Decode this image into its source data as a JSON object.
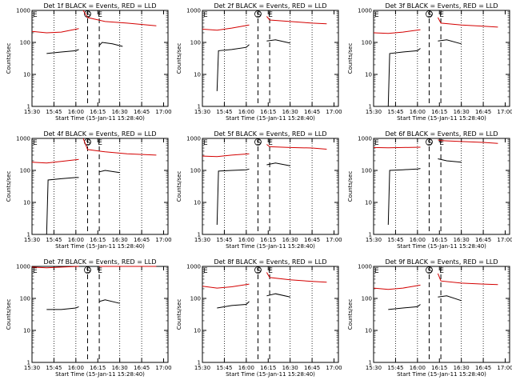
{
  "chart_data": {
    "type": "line",
    "ylabel": "Counts/sec",
    "xlabel": "Start Time (15-Jan-11 15:28:40)",
    "xticks": [
      "15:30",
      "15:45",
      "16:00",
      "16:15",
      "16:30",
      "16:45",
      "17:00"
    ],
    "yticks": [
      "1",
      "10",
      "100",
      "1000"
    ],
    "ylim": [
      1,
      1000
    ],
    "yscale": "log",
    "xlim_minutes_after_1530": [
      0,
      93
    ],
    "marker_labels": [
      "E",
      "S",
      "E"
    ],
    "colors": {
      "events": "#000000",
      "lld": "#d40000",
      "axis": "#000000"
    },
    "panels": [
      {
        "title": "Det 1f BLACK = Events, RED = LLD",
        "series": [
          {
            "color": "#d40000",
            "segments": [
              {
                "x": [
                  0,
                  10,
                  20,
                  32
                ],
                "y": [
                  220,
                  200,
                  210,
                  270
                ]
              },
              {
                "x": [
                  35,
                  38,
                  50,
                  65,
                  85
                ],
                "y": [
                  1000,
                  600,
                  450,
                  400,
                  330
                ]
              }
            ]
          },
          {
            "color": "#000000",
            "segments": [
              {
                "x": [
                  10,
                  20,
                  30,
                  32
                ],
                "y": [
                  45,
                  50,
                  55,
                  60
                ]
              },
              {
                "x": [
                  46,
                  48,
                  55,
                  62
                ],
                "y": [
                  80,
                  100,
                  90,
                  75
                ]
              }
            ]
          }
        ]
      },
      {
        "title": "Det 2f BLACK = Events, RED = LLD",
        "series": [
          {
            "color": "#d40000",
            "segments": [
              {
                "x": [
                  0,
                  10,
                  20,
                  32
                ],
                "y": [
                  260,
                  240,
                  280,
                  350
                ]
              },
              {
                "x": [
                  44,
                  46,
                  60,
                  75,
                  85
                ],
                "y": [
                  650,
                  500,
                  450,
                  400,
                  380
                ]
              }
            ]
          },
          {
            "color": "#000000",
            "segments": [
              {
                "x": [
                  10,
                  11,
                  20,
                  30,
                  32
                ],
                "y": [
                  3,
                  55,
                  60,
                  70,
                  85
                ]
              },
              {
                "x": [
                  44,
                  50,
                  60
                ],
                "y": [
                  110,
                  120,
                  95
                ]
              }
            ]
          }
        ]
      },
      {
        "title": "Det 3f BLACK = Events, RED = LLD",
        "series": [
          {
            "color": "#d40000",
            "segments": [
              {
                "x": [
                  0,
                  10,
                  20,
                  32
                ],
                "y": [
                  200,
                  190,
                  210,
                  250
                ]
              },
              {
                "x": [
                  44,
                  46,
                  60,
                  75,
                  85
                ],
                "y": [
                  600,
                  400,
                  350,
                  320,
                  300
                ]
              }
            ]
          },
          {
            "color": "#000000",
            "segments": [
              {
                "x": [
                  10,
                  11,
                  20,
                  30,
                  32
                ],
                "y": [
                  1,
                  45,
                  50,
                  55,
                  65
                ]
              },
              {
                "x": [
                  44,
                  50,
                  60
                ],
                "y": [
                  110,
                  120,
                  90
                ]
              }
            ]
          }
        ]
      },
      {
        "title": "Det 4f BLACK = Events, RED = LLD",
        "series": [
          {
            "color": "#d40000",
            "segments": [
              {
                "x": [
                  0,
                  10,
                  20,
                  32
                ],
                "y": [
                  180,
                  170,
                  190,
                  220
                ]
              },
              {
                "x": [
                  35,
                  38,
                  50,
                  65,
                  85
                ],
                "y": [
                  1000,
                  450,
                  380,
                  330,
                  300
                ]
              }
            ]
          },
          {
            "color": "#000000",
            "segments": [
              {
                "x": [
                  10,
                  11,
                  20,
                  30,
                  32
                ],
                "y": [
                  1,
                  50,
                  55,
                  60,
                  60
                ]
              },
              {
                "x": [
                  46,
                  50,
                  60
                ],
                "y": [
                  90,
                  100,
                  85
                ]
              }
            ]
          }
        ]
      },
      {
        "title": "Det 5f BLACK = Events, RED = LLD",
        "series": [
          {
            "color": "#d40000",
            "segments": [
              {
                "x": [
                  0,
                  10,
                  20,
                  32
                ],
                "y": [
                  280,
                  270,
                  300,
                  330
                ]
              },
              {
                "x": [
                  44,
                  46,
                  60,
                  75,
                  85
                ],
                "y": [
                  650,
                  550,
                  520,
                  500,
                  460
                ]
              }
            ]
          },
          {
            "color": "#000000",
            "segments": [
              {
                "x": [
                  10,
                  11,
                  20,
                  30,
                  32
                ],
                "y": [
                  2,
                  95,
                  100,
                  105,
                  110
                ]
              },
              {
                "x": [
                  44,
                  50,
                  60
                ],
                "y": [
                  150,
                  170,
                  140
                ]
              }
            ]
          }
        ]
      },
      {
        "title": "Det 6f BLACK = Events, RED = LLD",
        "series": [
          {
            "color": "#d40000",
            "segments": [
              {
                "x": [
                  0,
                  10,
                  20,
                  32
                ],
                "y": [
                  520,
                  510,
                  520,
                  530
                ]
              },
              {
                "x": [
                  44,
                  46,
                  60,
                  75,
                  85
                ],
                "y": [
                  900,
                  850,
                  800,
                  750,
                  700
                ]
              }
            ]
          },
          {
            "color": "#000000",
            "segments": [
              {
                "x": [
                  10,
                  11,
                  20,
                  30,
                  32
                ],
                "y": [
                  2,
                  100,
                  105,
                  110,
                  115
                ]
              },
              {
                "x": [
                  44,
                  50,
                  60
                ],
                "y": [
                  230,
                  200,
                  180
                ]
              }
            ]
          }
        ]
      },
      {
        "title": "Det 7f BLACK = Events, RED = LLD",
        "series": [
          {
            "color": "#d40000",
            "segments": [
              {
                "x": [
                  0,
                  10,
                  20,
                  32
                ],
                "y": [
                  950,
                  900,
                  950,
                  1000
                ]
              },
              {
                "x": [
                  46,
                  60,
                  75,
                  85
                ],
                "y": [
                  1000,
                  1000,
                  1000,
                  1000
                ]
              }
            ]
          },
          {
            "color": "#000000",
            "segments": [
              {
                "x": [
                  10,
                  20,
                  30,
                  32
                ],
                "y": [
                  45,
                  45,
                  50,
                  55
                ]
              },
              {
                "x": [
                  46,
                  50,
                  60
                ],
                "y": [
                  80,
                  90,
                  70
                ]
              }
            ]
          }
        ]
      },
      {
        "title": "Det 8f BLACK = Events, RED = LLD",
        "series": [
          {
            "color": "#d40000",
            "segments": [
              {
                "x": [
                  0,
                  10,
                  20,
                  32
                ],
                "y": [
                  240,
                  210,
                  230,
                  280
                ]
              },
              {
                "x": [
                  44,
                  46,
                  60,
                  75,
                  85
                ],
                "y": [
                  650,
                  450,
                  380,
                  340,
                  320
                ]
              }
            ]
          },
          {
            "color": "#000000",
            "segments": [
              {
                "x": [
                  10,
                  20,
                  30,
                  32
                ],
                "y": [
                  50,
                  60,
                  65,
                  80
                ]
              },
              {
                "x": [
                  44,
                  50,
                  60
                ],
                "y": [
                  120,
                  140,
                  110
                ]
              }
            ]
          }
        ]
      },
      {
        "title": "Det 9f BLACK = Events, RED = LLD",
        "series": [
          {
            "color": "#d40000",
            "segments": [
              {
                "x": [
                  0,
                  10,
                  20,
                  32
                ],
                "y": [
                  210,
                  190,
                  210,
                  260
                ]
              },
              {
                "x": [
                  44,
                  46,
                  60,
                  75,
                  85
                ],
                "y": [
                  600,
                  350,
                  300,
                  280,
                  270
                ]
              }
            ]
          },
          {
            "color": "#000000",
            "segments": [
              {
                "x": [
                  10,
                  20,
                  30,
                  32
                ],
                "y": [
                  45,
                  50,
                  55,
                  65
                ]
              },
              {
                "x": [
                  44,
                  50,
                  60
                ],
                "y": [
                  110,
                  120,
                  85
                ]
              }
            ]
          }
        ]
      }
    ]
  }
}
